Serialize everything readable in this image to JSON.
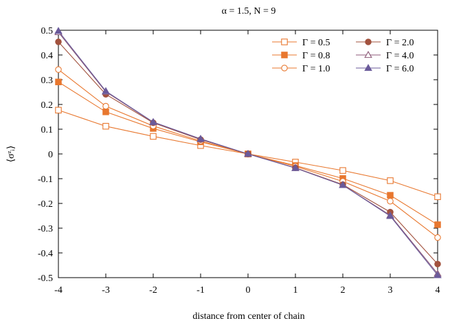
{
  "chart_data": {
    "type": "line",
    "title": "α = 1.5, N = 9",
    "xlabel": "distance from center of chain",
    "ylabel": "⟨σᶻᵢ⟩",
    "xlim": [
      -4,
      4
    ],
    "ylim": [
      -0.5,
      0.5
    ],
    "x_ticks": [
      "-4",
      "-3",
      "-2",
      "-1",
      "0",
      "1",
      "2",
      "3",
      "4"
    ],
    "y_ticks": [
      "-0.5",
      "-0.4",
      "-0.3",
      "-0.2",
      "-0.1",
      "0",
      "0.1",
      "0.2",
      "0.3",
      "0.4",
      "0.5"
    ],
    "grid": false,
    "legend_position": "top-right",
    "x": [
      -4,
      -3,
      -2,
      -1,
      0,
      1,
      2,
      3,
      4
    ],
    "series": [
      {
        "name": "Γ = 0.5",
        "color": "#e8772e",
        "marker": "square-open",
        "values": [
          0.177,
          0.112,
          0.071,
          0.034,
          0.0,
          -0.033,
          -0.067,
          -0.108,
          -0.173
        ]
      },
      {
        "name": "Γ = 0.8",
        "color": "#e8772e",
        "marker": "square-filled",
        "values": [
          0.291,
          0.17,
          0.103,
          0.049,
          0.0,
          -0.047,
          -0.099,
          -0.167,
          -0.286
        ]
      },
      {
        "name": "Γ = 1.0",
        "color": "#e8772e",
        "marker": "circle-open",
        "values": [
          0.341,
          0.193,
          0.113,
          0.052,
          0.0,
          -0.05,
          -0.111,
          -0.191,
          -0.338
        ]
      },
      {
        "name": "Γ = 2.0",
        "color": "#a2523e",
        "marker": "circle-filled",
        "values": [
          0.453,
          0.241,
          0.126,
          0.058,
          0.0,
          -0.056,
          -0.124,
          -0.235,
          -0.445
        ]
      },
      {
        "name": "Γ = 4.0",
        "color": "#8c5a78",
        "marker": "triangle-open",
        "values": [
          0.492,
          0.251,
          0.128,
          0.06,
          0.0,
          -0.057,
          -0.126,
          -0.248,
          -0.484
        ]
      },
      {
        "name": "Γ = 6.0",
        "color": "#6a5a9a",
        "marker": "triangle-filled",
        "values": [
          0.497,
          0.254,
          0.129,
          0.061,
          0.0,
          -0.057,
          -0.126,
          -0.251,
          -0.49
        ]
      }
    ]
  }
}
